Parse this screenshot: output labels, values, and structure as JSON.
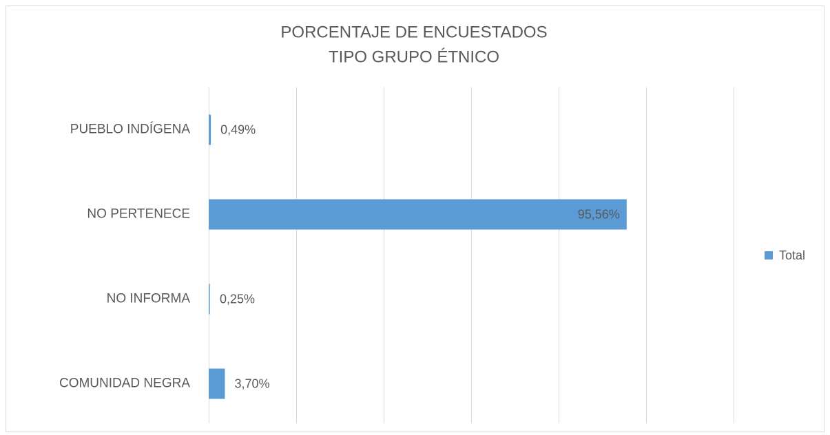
{
  "chart_data": {
    "type": "bar",
    "orientation": "horizontal",
    "title": [
      "PORCENTAJE DE ENCUESTADOS",
      "TIPO GRUPO ÉTNICO"
    ],
    "categories": [
      "PUEBLO INDÍGENA",
      "NO PERTENECE",
      "NO INFORMA",
      "COMUNIDAD NEGRA"
    ],
    "series": [
      {
        "name": "Total",
        "color": "#5b9bd5",
        "values": [
          0.49,
          95.56,
          0.25,
          3.7
        ],
        "value_labels": [
          "0,49%",
          "95,56%",
          "0,25%",
          "3,70%"
        ]
      }
    ],
    "xlim": [
      0,
      120
    ],
    "xticks": [
      0,
      20,
      40,
      60,
      80,
      100,
      120
    ],
    "grid": true,
    "legend": "right"
  }
}
